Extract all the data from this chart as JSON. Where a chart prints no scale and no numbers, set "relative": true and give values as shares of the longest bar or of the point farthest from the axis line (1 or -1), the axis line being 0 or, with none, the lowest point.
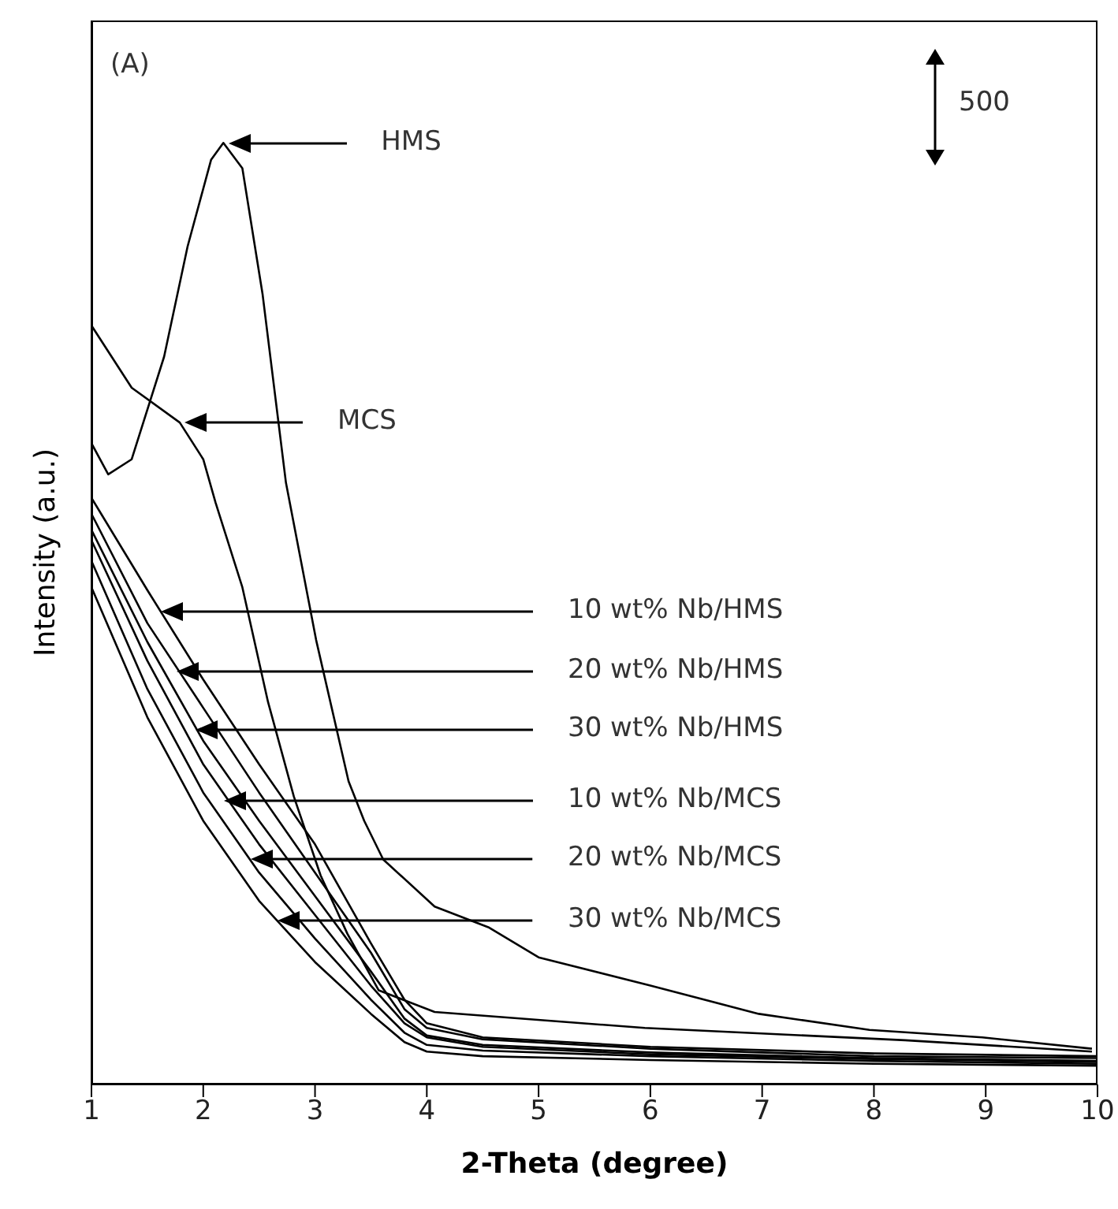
{
  "chart_data": {
    "type": "line",
    "relative": true,
    "xlabel": "2-Theta (degree)",
    "ylabel": "Intensity (a.u.)",
    "xlim": [
      1,
      10
    ],
    "xticks": [
      1,
      2,
      3,
      4,
      5,
      6,
      7,
      8,
      9,
      10
    ],
    "series": [
      {
        "color": "#000000",
        "x": [
          1,
          1.15,
          1.36,
          1.65,
          1.86,
          2.07,
          2.18,
          2.35,
          2.53,
          2.74,
          3.01,
          3.3,
          3.44,
          3.61,
          4.07,
          4.55,
          5,
          6,
          6.97,
          7.96,
          8.97,
          9.95
        ],
        "values": [
          0.681,
          0.648,
          0.664,
          0.773,
          0.89,
          0.982,
          1,
          0.973,
          0.84,
          0.639,
          0.472,
          0.322,
          0.28,
          0.239,
          0.189,
          0.167,
          0.135,
          0.105,
          0.075,
          0.058,
          0.05,
          0.038
        ]
      },
      {
        "color": "#000000",
        "x": [
          1,
          1.36,
          1.79,
          2,
          2.11,
          2.35,
          2.58,
          2.81,
          3.05,
          3.29,
          3.57,
          4.07,
          5.95,
          8.28,
          9.95
        ],
        "values": [
          0.806,
          0.74,
          0.703,
          0.664,
          0.618,
          0.528,
          0.406,
          0.306,
          0.222,
          0.16,
          0.1,
          0.077,
          0.06,
          0.047,
          0.035
        ]
      },
      {
        "color": "#000000",
        "x": [
          1,
          1.5,
          2,
          2.5,
          3,
          3.5,
          3.8,
          4,
          4.5,
          6,
          8,
          10
        ],
        "values": [
          0.623,
          0.525,
          0.43,
          0.34,
          0.255,
          0.15,
          0.09,
          0.065,
          0.05,
          0.04,
          0.033,
          0.03
        ]
      },
      {
        "color": "#000000",
        "x": [
          1,
          1.5,
          2,
          2.5,
          3,
          3.5,
          3.8,
          4,
          4.5,
          6,
          8,
          10
        ],
        "values": [
          0.606,
          0.49,
          0.4,
          0.31,
          0.225,
          0.14,
          0.08,
          0.06,
          0.048,
          0.038,
          0.03,
          0.028
        ]
      },
      {
        "color": "#000000",
        "x": [
          1,
          1.5,
          2,
          2.5,
          3,
          3.5,
          3.8,
          4,
          4.5,
          6,
          8,
          10
        ],
        "values": [
          0.589,
          0.47,
          0.365,
          0.28,
          0.2,
          0.12,
          0.07,
          0.052,
          0.042,
          0.034,
          0.028,
          0.025
        ]
      },
      {
        "color": "#000000",
        "x": [
          1,
          1.5,
          2,
          2.5,
          3,
          3.5,
          3.8,
          4,
          4.5,
          6,
          8,
          10
        ],
        "values": [
          0.578,
          0.45,
          0.34,
          0.255,
          0.18,
          0.105,
          0.065,
          0.05,
          0.04,
          0.032,
          0.027,
          0.024
        ]
      },
      {
        "color": "#000000",
        "x": [
          1,
          1.5,
          2,
          2.5,
          3,
          3.5,
          3.8,
          4,
          4.5,
          6,
          8,
          10
        ],
        "values": [
          0.556,
          0.42,
          0.31,
          0.225,
          0.155,
          0.09,
          0.055,
          0.042,
          0.036,
          0.03,
          0.025,
          0.022
        ]
      },
      {
        "color": "#000000",
        "x": [
          1,
          1.5,
          2,
          2.5,
          3,
          3.5,
          3.8,
          4,
          4.5,
          6,
          8,
          10
        ],
        "values": [
          0.528,
          0.39,
          0.28,
          0.195,
          0.13,
          0.075,
          0.045,
          0.035,
          0.03,
          0.026,
          0.022,
          0.02
        ]
      }
    ],
    "annotations": [
      "(A)",
      "500",
      "HMS",
      "MCS",
      {
        "text": "10 wt% Nb/HMS",
        "x": 1.62,
        "y": 0.503
      },
      {
        "text": "20 wt% Nb/HMS",
        "x": 1.76,
        "y": 0.439
      },
      {
        "text": "30 wt% Nb/HMS",
        "x": 1.93,
        "y": 0.376
      },
      {
        "text": "10 wt% Nb/MCS",
        "x": 2.18,
        "y": 0.302
      },
      {
        "text": "20 wt% Nb/MCS",
        "x": 2.43,
        "y": 0.239
      },
      {
        "text": "30 wt% Nb/MCS",
        "x": 2.67,
        "y": 0.174
      }
    ]
  }
}
